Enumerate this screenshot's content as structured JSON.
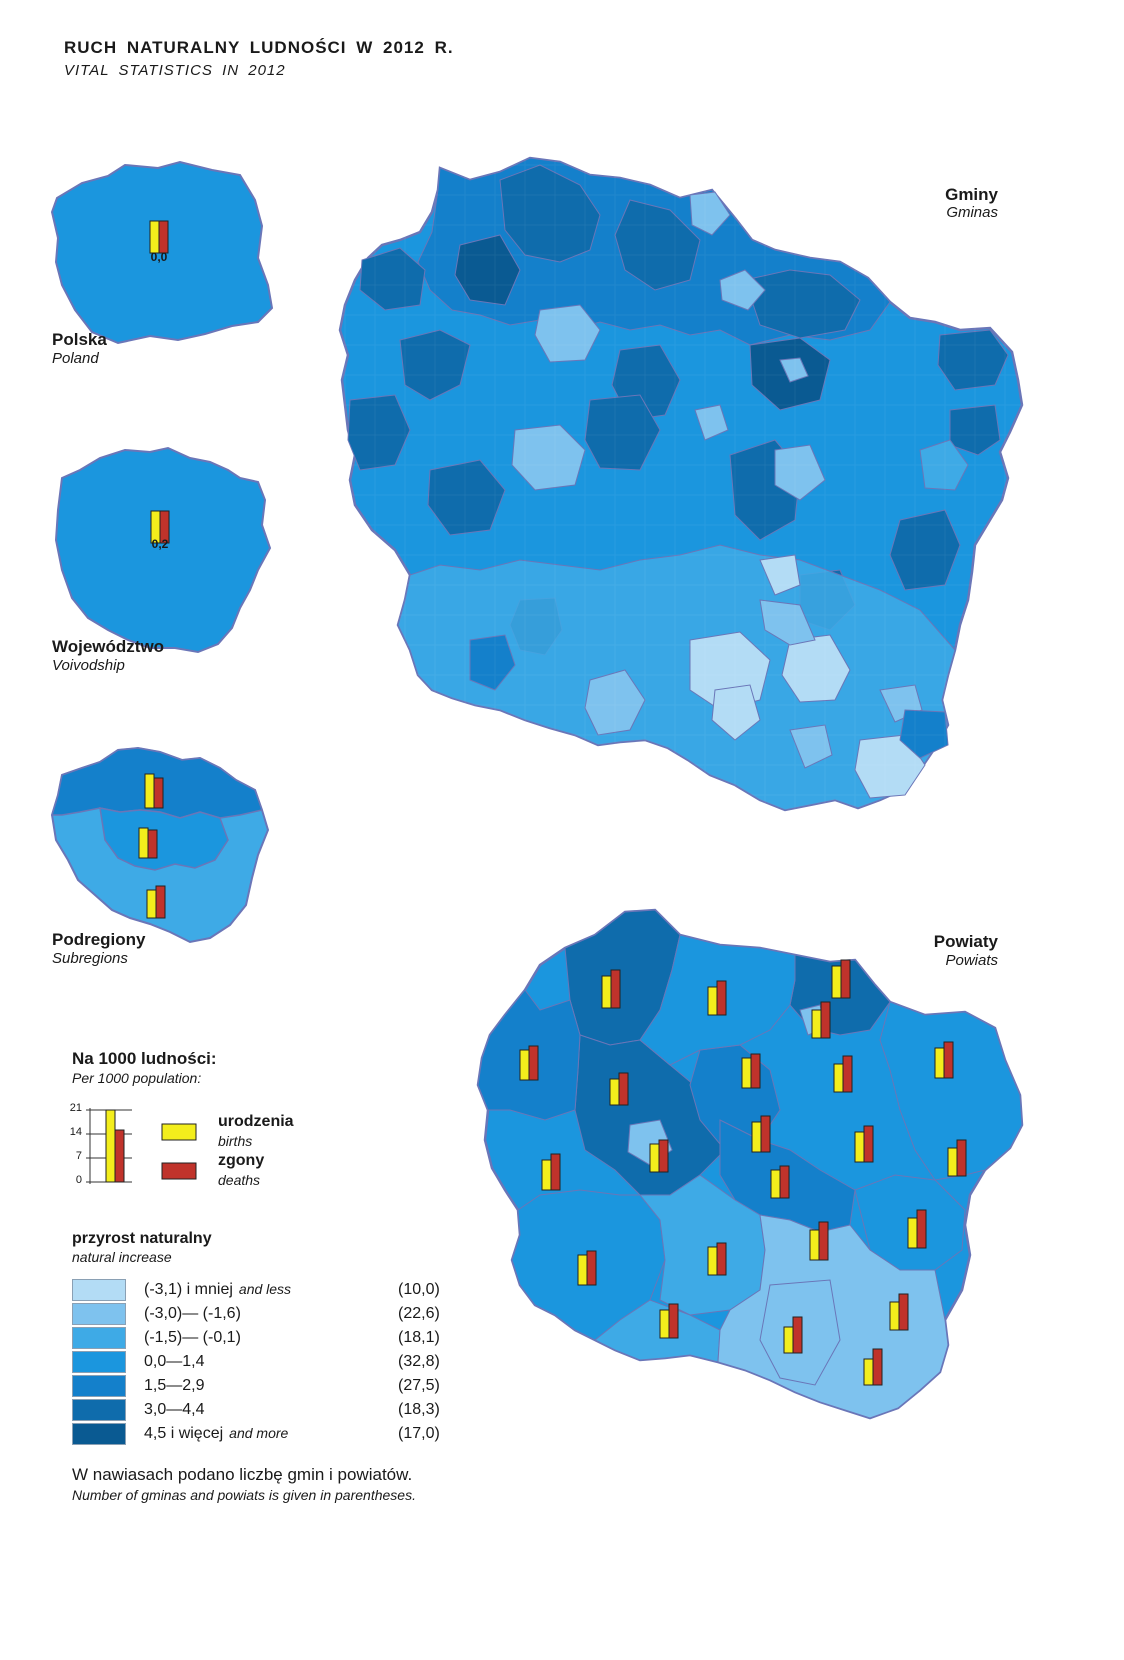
{
  "title": {
    "pl": "RUCH NATURALNY LUDNOŚCI W 2012 R.",
    "en": "VITAL STATISTICS IN 2012"
  },
  "maps": {
    "poland": {
      "label_pl": "Polska",
      "label_en": "Poland",
      "natural_increase": "0,0"
    },
    "voivodship": {
      "label_pl": "Województwo",
      "label_en": "Voivodship",
      "natural_increase": "0,2"
    },
    "subregions": {
      "label_pl": "Podregiony",
      "label_en": "Subregions"
    },
    "gminas": {
      "label_pl": "Gminy",
      "label_en": "Gminas"
    },
    "powiats": {
      "label_pl": "Powiaty",
      "label_en": "Powiats"
    }
  },
  "scale": {
    "title_pl": "Na 1000 ludności:",
    "title_en": "Per 1000 population:",
    "ticks": [
      "21",
      "14",
      "7",
      "0"
    ],
    "births_pl": "urodzenia",
    "births_en": "births",
    "deaths_pl": "zgony",
    "deaths_en": "deaths",
    "births_color": "#f3ee1c",
    "deaths_color": "#c0332b"
  },
  "legend": {
    "title_pl": "przyrost naturalny",
    "title_en": "natural increase",
    "classes": [
      {
        "range": "(-3,1) i mniej",
        "suffix": "and less",
        "count": "(10,0)",
        "color": "#b3dcf5"
      },
      {
        "range": "(-3,0)— (-1,6)",
        "suffix": "",
        "count": "(22,6)",
        "color": "#7ec2ee"
      },
      {
        "range": "(-1,5)— (-0,1)",
        "suffix": "",
        "count": "(18,1)",
        "color": "#3eaae6"
      },
      {
        "range": "0,0—1,4",
        "suffix": "",
        "count": "(32,8)",
        "color": "#1b96de"
      },
      {
        "range": "1,5—2,9",
        "suffix": "",
        "count": "(27,5)",
        "color": "#1480cb"
      },
      {
        "range": "3,0—4,4",
        "suffix": "",
        "count": "(18,3)",
        "color": "#0f6cac"
      },
      {
        "range": "4,5 i więcej",
        "suffix": "and more",
        "count": "(17,0)",
        "color": "#0a5a92"
      }
    ]
  },
  "footnote": {
    "pl": "W nawiasach podano liczbę gmin i powiatów.",
    "en": "Number of gminas and powiats is given in parentheses."
  }
}
